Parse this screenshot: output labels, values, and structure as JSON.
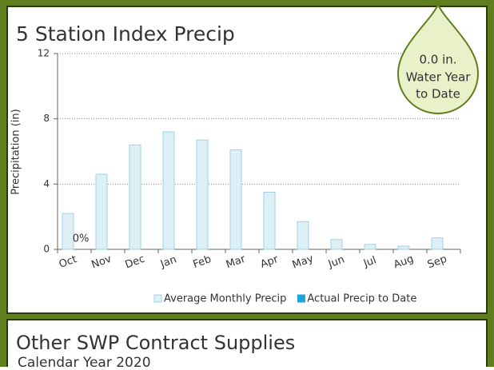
{
  "chart_data": {
    "type": "bar",
    "title": "5 Station Index Precip",
    "y_label": "Precipitation (in)",
    "categories": [
      "Oct",
      "Nov",
      "Dec",
      "Jan",
      "Feb",
      "Mar",
      "Apr",
      "May",
      "Jun",
      "Jul",
      "Aug",
      "Sep"
    ],
    "series": [
      {
        "name": "Average Monthly Precip",
        "color": "#dcf0f6",
        "edge": "#9fd3e4",
        "values": [
          2.2,
          4.6,
          6.4,
          7.2,
          6.7,
          6.1,
          3.5,
          1.7,
          0.6,
          0.3,
          0.2,
          0.7
        ]
      },
      {
        "name": "Actual Precip to Date",
        "color": "#1aa3dc",
        "values": [
          0,
          null,
          null,
          null,
          null,
          null,
          null,
          null,
          null,
          null,
          null,
          null
        ],
        "value_labels": [
          "0%",
          null,
          null,
          null,
          null,
          null,
          null,
          null,
          null,
          null,
          null,
          null
        ]
      }
    ],
    "ylim": [
      0,
      12
    ],
    "yticks": [
      0,
      4,
      8,
      12
    ],
    "grid": true,
    "badge": [
      "0.0 in.",
      "Water Year",
      "to Date"
    ]
  },
  "panel2": {
    "title": "Other SWP Contract Supplies",
    "subtitle": "Calendar Year 2020"
  }
}
